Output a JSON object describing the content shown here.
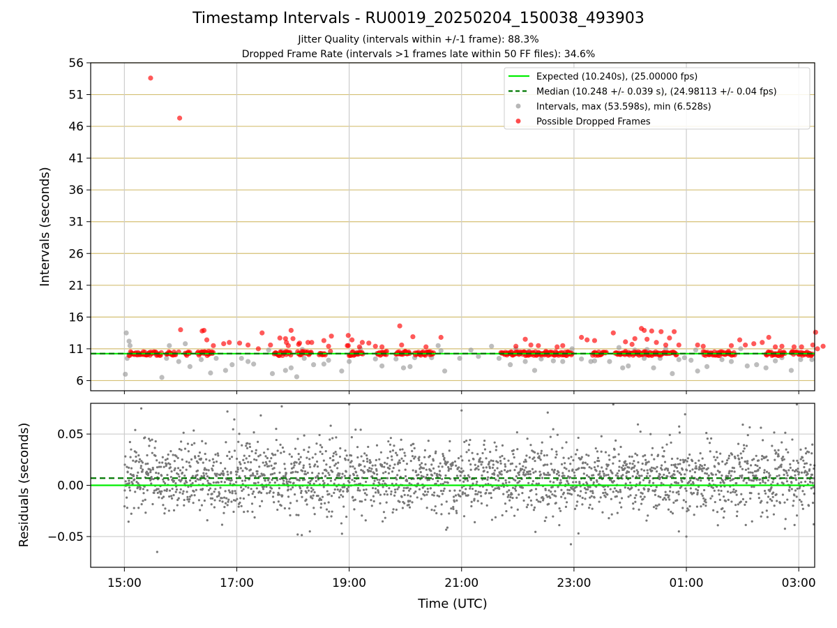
{
  "title": "Timestamp Intervals - RU0019_20250204_150038_493903",
  "subtitle_1": "Jitter Quality (intervals within +/-1 frame): 88.3%",
  "subtitle_2": "Dropped Frame Rate (intervals >1 frames late within 50 FF files): 34.6%",
  "colors": {
    "expected": "#00ee00",
    "median": "#007700",
    "intervals": "#999999",
    "dropped": "#ff0000",
    "residuals": "#777777",
    "gold_grid": "#d4bf73",
    "grid": "#cccccc"
  },
  "chart_data": [
    {
      "type": "scatter",
      "panel": "top",
      "ylabel": "Intervals (seconds)",
      "ylim": [
        4.4,
        56
      ],
      "xlim": [
        "14:24",
        "03:17"
      ],
      "y_ticks": [
        6,
        11,
        16,
        21,
        26,
        31,
        36,
        41,
        46,
        51,
        56
      ],
      "grid": true,
      "legend_position": "top-right",
      "lines": [
        {
          "name": "Expected (10.240s), (25.00000 fps)",
          "y": 10.24,
          "style": "solid"
        },
        {
          "name": "Median (10.248 +/- 0.039 s), (24.98113 +/- 0.04 fps)",
          "y": 10.248,
          "style": "dashed"
        }
      ],
      "series": [
        {
          "name": "Intervals, max (53.598s), min (6.528s)",
          "points": [
            [
              "15:01",
              7.0
            ],
            [
              "15:02",
              13.5
            ],
            [
              "15:03",
              9.5
            ],
            [
              "15:05",
              12.2
            ],
            [
              "15:06",
              11.5
            ],
            [
              "15:40",
              6.5
            ],
            [
              "15:45",
              9.5
            ],
            [
              "15:48",
              11.5
            ],
            [
              "15:58",
              9.0
            ],
            [
              "16:05",
              11.8
            ],
            [
              "16:10",
              8.2
            ],
            [
              "16:22",
              9.3
            ],
            [
              "16:32",
              7.2
            ],
            [
              "16:38",
              9.5
            ],
            [
              "16:48",
              7.6
            ],
            [
              "16:55",
              8.5
            ],
            [
              "17:05",
              9.5
            ],
            [
              "17:12",
              9.0
            ],
            [
              "17:18",
              8.6
            ],
            [
              "17:34",
              10.8
            ],
            [
              "17:38",
              7.1
            ],
            [
              "17:52",
              7.6
            ],
            [
              "17:58",
              8.0
            ],
            [
              "18:04",
              6.6
            ],
            [
              "18:12",
              9.5
            ],
            [
              "18:22",
              8.5
            ],
            [
              "18:33",
              8.6
            ],
            [
              "18:38",
              9.2
            ],
            [
              "18:52",
              7.5
            ],
            [
              "19:00",
              9.0
            ],
            [
              "19:12",
              11.0
            ],
            [
              "19:28",
              9.4
            ],
            [
              "19:35",
              8.3
            ],
            [
              "19:50",
              9.4
            ],
            [
              "19:58",
              8.0
            ],
            [
              "20:05",
              8.2
            ],
            [
              "20:10",
              9.6
            ],
            [
              "20:28",
              9.6
            ],
            [
              "20:35",
              11.5
            ],
            [
              "20:42",
              7.5
            ],
            [
              "20:58",
              9.5
            ],
            [
              "21:10",
              10.8
            ],
            [
              "21:18",
              9.8
            ],
            [
              "21:32",
              11.4
            ],
            [
              "21:40",
              9.5
            ],
            [
              "21:52",
              8.5
            ],
            [
              "21:58",
              11.0
            ],
            [
              "22:08",
              9.0
            ],
            [
              "22:18",
              7.6
            ],
            [
              "22:25",
              9.4
            ],
            [
              "22:38",
              9.1
            ],
            [
              "22:48",
              9.0
            ],
            [
              "22:58",
              11.0
            ],
            [
              "23:08",
              9.4
            ],
            [
              "23:18",
              9.0
            ],
            [
              "23:22",
              9.1
            ],
            [
              "23:38",
              9.0
            ],
            [
              "23:48",
              11.2
            ],
            [
              "23:52",
              8.0
            ],
            [
              "23:58",
              8.3
            ],
            [
              "00:05",
              10.8
            ],
            [
              "00:15",
              9.5
            ],
            [
              "00:25",
              8.0
            ],
            [
              "00:32",
              9.5
            ],
            [
              "00:38",
              11.0
            ],
            [
              "00:45",
              7.1
            ],
            [
              "00:52",
              9.3
            ],
            [
              "00:58",
              9.6
            ],
            [
              "01:05",
              9.2
            ],
            [
              "01:10",
              10.8
            ],
            [
              "01:12",
              7.5
            ],
            [
              "01:22",
              8.2
            ],
            [
              "01:38",
              9.3
            ],
            [
              "01:48",
              9.0
            ],
            [
              "01:58",
              11.0
            ],
            [
              "02:05",
              8.3
            ],
            [
              "02:15",
              8.5
            ],
            [
              "02:25",
              8.0
            ],
            [
              "02:35",
              9.1
            ],
            [
              "02:42",
              9.6
            ],
            [
              "02:52",
              7.6
            ],
            [
              "03:02",
              9.3
            ],
            [
              "03:14",
              9.3
            ],
            [
              "17:48",
              10.6
            ],
            [
              "18:10",
              10.9
            ],
            [
              "20:38",
              10.7
            ],
            [
              "22:12",
              10.6
            ],
            [
              "00:18",
              10.9
            ]
          ]
        },
        {
          "name": "Possible Dropped Frames",
          "points": [
            [
              "15:28",
              53.6
            ],
            [
              "15:59",
              47.3
            ],
            [
              "16:00",
              14.0
            ],
            [
              "16:23",
              13.8
            ],
            [
              "16:25",
              13.9
            ],
            [
              "16:28",
              12.4
            ],
            [
              "16:35",
              11.5
            ],
            [
              "16:46",
              11.8
            ],
            [
              "16:52",
              12.0
            ],
            [
              "17:03",
              11.9
            ],
            [
              "17:12",
              11.6
            ],
            [
              "17:23",
              11.0
            ],
            [
              "17:27",
              13.5
            ],
            [
              "17:36",
              11.6
            ],
            [
              "17:46",
              12.7
            ],
            [
              "17:52",
              12.6
            ],
            [
              "17:53",
              12.0
            ],
            [
              "17:55",
              11.5
            ],
            [
              "17:58",
              13.9
            ],
            [
              "18:00",
              12.6
            ],
            [
              "18:06",
              11.7
            ],
            [
              "18:07",
              11.9
            ],
            [
              "18:16",
              12.0
            ],
            [
              "18:20",
              12.0
            ],
            [
              "18:33",
              12.3
            ],
            [
              "18:38",
              11.4
            ],
            [
              "18:41",
              13.0
            ],
            [
              "18:58",
              11.5
            ],
            [
              "18:59",
              11.5
            ],
            [
              "18:59",
              13.1
            ],
            [
              "19:03",
              12.4
            ],
            [
              "19:11",
              11.3
            ],
            [
              "19:14",
              12.0
            ],
            [
              "19:21",
              11.9
            ],
            [
              "19:28",
              11.4
            ],
            [
              "19:35",
              11.3
            ],
            [
              "19:54",
              14.6
            ],
            [
              "19:56",
              11.6
            ],
            [
              "20:08",
              12.9
            ],
            [
              "20:22",
              11.3
            ],
            [
              "20:38",
              12.8
            ],
            [
              "21:58",
              11.4
            ],
            [
              "22:08",
              12.5
            ],
            [
              "22:14",
              11.6
            ],
            [
              "22:22",
              11.5
            ],
            [
              "22:42",
              11.3
            ],
            [
              "22:48",
              11.5
            ],
            [
              "23:08",
              12.8
            ],
            [
              "23:14",
              12.4
            ],
            [
              "23:22",
              12.3
            ],
            [
              "23:42",
              13.5
            ],
            [
              "23:55",
              12.1
            ],
            [
              "24:02",
              11.7
            ],
            [
              "24:05",
              12.6
            ],
            [
              "24:12",
              14.2
            ],
            [
              "24:15",
              13.9
            ],
            [
              "24:18",
              12.5
            ],
            [
              "24:23",
              13.8
            ],
            [
              "24:28",
              12.0
            ],
            [
              "24:33",
              13.7
            ],
            [
              "24:38",
              11.6
            ],
            [
              "24:42",
              12.7
            ],
            [
              "24:47",
              13.7
            ],
            [
              "24:52",
              11.6
            ],
            [
              "25:12",
              11.6
            ],
            [
              "25:18",
              11.4
            ],
            [
              "25:48",
              11.5
            ],
            [
              "25:57",
              12.4
            ],
            [
              "26:03",
              11.6
            ],
            [
              "26:12",
              11.8
            ],
            [
              "26:21",
              12.0
            ],
            [
              "26:28",
              12.8
            ],
            [
              "26:35",
              11.3
            ],
            [
              "26:42",
              11.4
            ],
            [
              "26:55",
              11.3
            ],
            [
              "27:03",
              11.3
            ],
            [
              "27:15",
              11.6
            ],
            [
              "27:18",
              13.6
            ],
            [
              "27:20",
              11.0
            ],
            [
              "27:26",
              11.4
            ],
            [
              "15:58",
              10.5
            ],
            [
              "16:30",
              10.6
            ],
            [
              "18:10",
              10.6
            ],
            [
              "18:40",
              10.6
            ],
            [
              "19:40",
              10.6
            ],
            [
              "20:00",
              10.6
            ],
            [
              "22:30",
              10.6
            ],
            [
              "23:55",
              10.6
            ],
            [
              "25:45",
              10.6
            ],
            [
              "26:40",
              10.6
            ]
          ],
          "dense_band_y": 10.24,
          "dense_band_ranges": [
            [
              "15:05",
              "15:40"
            ],
            [
              "15:45",
              "15:55"
            ],
            [
              "16:05",
              "16:10"
            ],
            [
              "16:18",
              "16:35"
            ],
            [
              "17:40",
              "17:58"
            ],
            [
              "18:05",
              "18:20"
            ],
            [
              "18:28",
              "18:35"
            ],
            [
              "19:00",
              "19:15"
            ],
            [
              "19:30",
              "19:40"
            ],
            [
              "19:50",
              "20:05"
            ],
            [
              "20:10",
              "20:30"
            ],
            [
              "21:42",
              "22:58"
            ],
            [
              "23:20",
              "23:35"
            ],
            [
              "23:44",
              "24:50"
            ],
            [
              "25:18",
              "25:52"
            ],
            [
              "26:25",
              "26:45"
            ],
            [
              "26:52",
              "27:15"
            ]
          ]
        }
      ]
    },
    {
      "type": "scatter",
      "panel": "bottom",
      "xlabel": "Time (UTC)",
      "ylabel": "Residuals (seconds)",
      "ylim": [
        -0.08,
        0.08
      ],
      "y_ticks": [
        0.05,
        0.0,
        -0.05
      ],
      "y_tick_labels": [
        "0.05",
        "0.00",
        "−0.05"
      ],
      "x_ticks": [
        "15:00",
        "17:00",
        "19:00",
        "21:00",
        "23:00",
        "01:00",
        "03:00"
      ],
      "xlim": [
        "14:24",
        "03:17"
      ],
      "grid": true,
      "lines": [
        {
          "name": "Expected",
          "y": 0.0,
          "style": "solid"
        },
        {
          "name": "Median",
          "y": 0.007,
          "style": "dashed"
        }
      ],
      "series": [
        {
          "name": "Residuals",
          "approximate_distribution": {
            "center": 0.007,
            "spread": 0.018,
            "range": [
              -0.065,
              0.08
            ],
            "sample_count": 2400
          },
          "outliers": [
            [
              "15:35",
              -0.065
            ],
            [
              "18:05",
              -0.048
            ],
            [
              "18:18",
              -0.045
            ],
            [
              "01:00",
              -0.05
            ],
            [
              "00:52",
              -0.045
            ],
            [
              "15:18",
              0.075
            ],
            [
              "16:50",
              0.072
            ],
            [
              "17:48",
              0.077
            ],
            [
              "19:00",
              0.079
            ],
            [
              "21:00",
              0.073
            ],
            [
              "22:32",
              0.071
            ],
            [
              "23:42",
              0.079
            ],
            [
              "02:58",
              0.079
            ],
            [
              "03:16",
              -0.038
            ]
          ]
        }
      ]
    }
  ]
}
